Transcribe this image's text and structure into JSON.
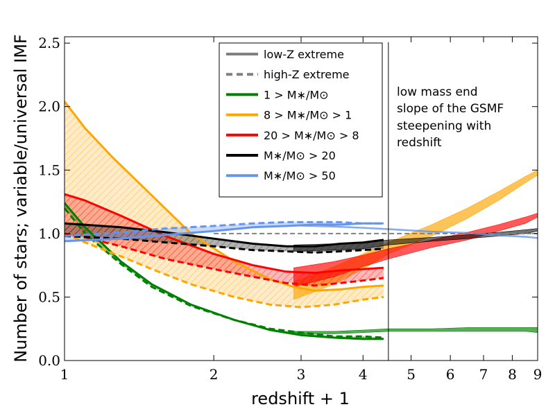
{
  "chart_data": {
    "type": "line",
    "ylabel": "Number of stars; variable/universal IMF",
    "xlabel": "redshift + 1",
    "xscale": "log",
    "xlim": [
      1,
      9
    ],
    "ylim": [
      0,
      2.55
    ],
    "xticks": [
      {
        "value": 1,
        "label": "1"
      },
      {
        "value": 2,
        "label": "2"
      },
      {
        "value": 3,
        "label": "3"
      },
      {
        "value": 4,
        "label": "4"
      },
      {
        "value": 5,
        "label": "5"
      },
      {
        "value": 6,
        "label": "6"
      },
      {
        "value": 7,
        "label": "7"
      },
      {
        "value": 8,
        "label": "8"
      },
      {
        "value": 9,
        "label": "9"
      }
    ],
    "yticks": [
      {
        "value": 0,
        "label": "0.0"
      },
      {
        "value": 0.5,
        "label": "0.5"
      },
      {
        "value": 1.0,
        "label": "1.0"
      },
      {
        "value": 1.5,
        "label": "1.5"
      },
      {
        "value": 2.0,
        "label": "2.0"
      },
      {
        "value": 2.5,
        "label": "2.5"
      }
    ],
    "divider_x": 4.5,
    "annotation": [
      "low mass end",
      "slope of the GSMF",
      "steepening with",
      "redshift"
    ],
    "legend": [
      {
        "label": "low-Z extreme",
        "style": "solid",
        "color": "#808080"
      },
      {
        "label": "high-Z extreme",
        "style": "dashed",
        "color": "#808080"
      },
      {
        "label": "1 > M∗/M⊙",
        "style": "solid",
        "color": "#008000"
      },
      {
        "label": "8 > M∗/M⊙ > 1",
        "style": "solid",
        "color": "#FFA500"
      },
      {
        "label": "20 > M∗/M⊙ > 8",
        "style": "solid",
        "color": "#FF0000"
      },
      {
        "label": "M∗/M⊙ > 20",
        "style": "solid",
        "color": "#000000"
      },
      {
        "label": "M∗/M⊙ > 50",
        "style": "solid",
        "color": "#6495ED"
      }
    ],
    "series": [
      {
        "name": "1 > M/Msun",
        "color": "#008000",
        "low_z": {
          "x": [
            1,
            1.1,
            1.3,
            1.5,
            1.8,
            2.2,
            2.6,
            3.0,
            3.5,
            4.0,
            4.4
          ],
          "y": [
            1.24,
            1.05,
            0.78,
            0.6,
            0.44,
            0.32,
            0.24,
            0.2,
            0.18,
            0.17,
            0.17
          ]
        },
        "high_z": {
          "x": [
            1,
            1.1,
            1.3,
            1.5,
            1.8,
            2.2,
            2.6,
            3.0,
            3.5,
            4.0,
            4.4
          ],
          "y": [
            1.2,
            1.0,
            0.76,
            0.58,
            0.43,
            0.32,
            0.25,
            0.22,
            0.19,
            0.19,
            0.18
          ]
        },
        "band_ext_x": [
          2.9,
          3.5,
          4.0,
          4.5,
          5.5,
          6.5,
          7.5,
          8.5,
          9
        ],
        "band_ext_low": [
          0.21,
          0.21,
          0.22,
          0.23,
          0.23,
          0.23,
          0.23,
          0.23,
          0.22
        ],
        "band_ext_high": [
          0.23,
          0.23,
          0.24,
          0.25,
          0.25,
          0.26,
          0.26,
          0.26,
          0.26
        ]
      },
      {
        "name": "8 > M/Msun > 1",
        "color": "#FFA500",
        "low_z": {
          "x": [
            1,
            1.1,
            1.25,
            1.5,
            1.8,
            2.2,
            2.6,
            2.9,
            3.2,
            3.6,
            4.0,
            4.4
          ],
          "y": [
            2.04,
            1.83,
            1.6,
            1.3,
            1.0,
            0.78,
            0.64,
            0.58,
            0.55,
            0.56,
            0.58,
            0.59
          ]
        },
        "high_z": {
          "x": [
            1,
            1.1,
            1.3,
            1.5,
            1.8,
            2.2,
            2.6,
            3.0,
            3.5,
            4.0,
            4.4
          ],
          "y": [
            1.0,
            0.93,
            0.82,
            0.72,
            0.6,
            0.5,
            0.44,
            0.42,
            0.44,
            0.48,
            0.5
          ]
        },
        "band_ext_x": [
          2.9,
          3.5,
          4.0,
          4.5,
          5.5,
          6.5,
          7.5,
          8.5,
          9
        ],
        "band_ext_low": [
          0.48,
          0.6,
          0.72,
          0.84,
          0.98,
          1.12,
          1.26,
          1.4,
          1.46
        ],
        "band_ext_high": [
          0.62,
          0.74,
          0.84,
          0.93,
          1.07,
          1.2,
          1.33,
          1.45,
          1.5
        ]
      },
      {
        "name": "20 > M/Msun > 8",
        "color": "#FF0000",
        "low_z": {
          "x": [
            1,
            1.1,
            1.3,
            1.6,
            2.0,
            2.4,
            2.8,
            3.2,
            3.6,
            4.0,
            4.4
          ],
          "y": [
            1.31,
            1.26,
            1.14,
            0.98,
            0.84,
            0.75,
            0.7,
            0.69,
            0.71,
            0.72,
            0.73
          ]
        },
        "high_z": {
          "x": [
            1,
            1.1,
            1.3,
            1.6,
            2.0,
            2.4,
            2.8,
            3.2,
            3.6,
            4.0,
            4.4
          ],
          "y": [
            1.0,
            0.97,
            0.9,
            0.8,
            0.72,
            0.66,
            0.61,
            0.59,
            0.61,
            0.63,
            0.65
          ]
        },
        "band_ext_x": [
          2.9,
          3.5,
          4.0,
          4.5,
          5.5,
          6.5,
          7.5,
          8.5,
          9
        ],
        "band_ext_low": [
          0.58,
          0.66,
          0.74,
          0.8,
          0.89,
          0.95,
          1.02,
          1.08,
          1.13
        ],
        "band_ext_high": [
          0.73,
          0.78,
          0.83,
          0.88,
          0.95,
          1.01,
          1.07,
          1.13,
          1.16
        ]
      },
      {
        "name": "M/Msun > 20",
        "color": "#000000",
        "low_z": {
          "x": [
            1,
            1.3,
            1.6,
            2.0,
            2.4,
            2.8,
            3.2,
            3.6,
            4.0,
            4.4
          ],
          "y": [
            1.08,
            1.05,
            1.01,
            0.96,
            0.92,
            0.9,
            0.9,
            0.92,
            0.93,
            0.95
          ]
        },
        "high_z": {
          "x": [
            1,
            1.3,
            1.6,
            2.0,
            2.4,
            2.8,
            3.2,
            3.6,
            4.0,
            4.4
          ],
          "y": [
            0.98,
            0.96,
            0.93,
            0.9,
            0.87,
            0.86,
            0.85,
            0.86,
            0.87,
            0.88
          ]
        },
        "band_ext_x": [
          2.9,
          3.5,
          4.0,
          4.5,
          5.5,
          6.5,
          7.5,
          8.5,
          9
        ],
        "band_ext_low": [
          0.86,
          0.87,
          0.88,
          0.91,
          0.94,
          0.96,
          0.98,
          1.0,
          1.02
        ],
        "band_ext_high": [
          0.91,
          0.92,
          0.93,
          0.95,
          0.97,
          0.99,
          1.01,
          1.03,
          1.04
        ]
      },
      {
        "name": "M/Msun > 50",
        "color": "#6495ED",
        "low_z": {
          "x": [
            1,
            1.3,
            1.6,
            2.0,
            2.4,
            2.8,
            3.2,
            3.6,
            4.0,
            4.4
          ],
          "y": [
            0.94,
            0.96,
            0.99,
            1.02,
            1.05,
            1.06,
            1.07,
            1.07,
            1.08,
            1.08
          ]
        },
        "high_z": {
          "x": [
            1,
            1.3,
            1.6,
            2.0,
            2.4,
            2.8,
            3.2,
            3.6,
            4.0,
            4.4
          ],
          "y": [
            0.98,
            1.01,
            1.04,
            1.06,
            1.08,
            1.09,
            1.09,
            1.09,
            1.08,
            1.08
          ]
        },
        "band_ext_x": [
          2.9,
          3.5,
          4.0,
          4.5,
          5.5,
          6.5,
          7.5,
          8.5,
          9
        ],
        "band_ext_low": [
          1.06,
          1.05,
          1.04,
          1.03,
          1.01,
          1.0,
          0.98,
          0.97,
          0.96
        ],
        "band_ext_high": [
          1.07,
          1.06,
          1.05,
          1.04,
          1.02,
          1.01,
          0.99,
          0.98,
          0.97
        ]
      }
    ],
    "reference": {
      "name": "high-Z reference",
      "color": "#808080",
      "style": "dashed",
      "x": [
        2.0,
        9
      ],
      "y": [
        1.0,
        1.0
      ]
    }
  }
}
